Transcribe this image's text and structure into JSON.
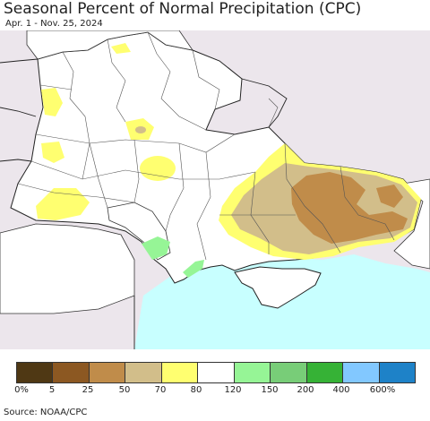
{
  "header": {
    "title": "Seasonal Percent of Normal Precipitation (CPC)",
    "subtitle": "Apr. 1 - Nov. 25, 2024"
  },
  "legend": {
    "colors": [
      "#4f3814",
      "#8c5822",
      "#c08c4a",
      "#d2be8a",
      "#ffff70",
      "#ffffff",
      "#96f596",
      "#78cd78",
      "#36b236",
      "#82c8ff",
      "#1e82c8"
    ],
    "labels": [
      "0%",
      "5",
      "25",
      "50",
      "70",
      "80",
      "120",
      "150",
      "200",
      "400",
      "600%"
    ]
  },
  "map": {
    "land_color": "#ffffff",
    "outside_color": "#ece6ec",
    "sea_color": "#c8ffff"
  },
  "footer": {
    "source": "Source: NOAA/CPC"
  }
}
